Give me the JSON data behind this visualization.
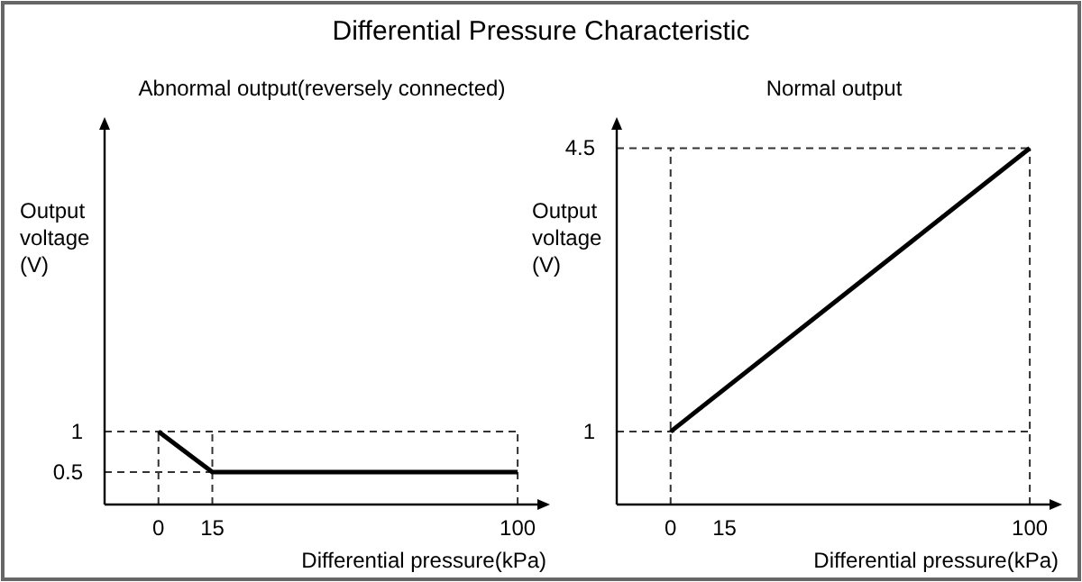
{
  "chart_data": [
    {
      "type": "line",
      "title": "Differential Pressure Characteristic",
      "subtitle": "Abnormal output(reversely connected)",
      "xlabel": "Differential pressure(kPa)",
      "ylabel": "Output voltage (V)",
      "x": [
        0,
        15,
        100
      ],
      "series": [
        {
          "color": "#000000",
          "values": [
            1,
            0.5,
            0.5
          ]
        }
      ],
      "xlim": [
        -15,
        106
      ],
      "xticks": [
        0,
        15,
        100
      ],
      "ylim": [
        0.1,
        4.75
      ],
      "yticks": [
        0.5,
        1
      ],
      "marker": "none",
      "line_style": "solid",
      "ref_lines": [
        {
          "axis": "y",
          "value": 1,
          "line_style": "dashed"
        },
        {
          "axis": "y",
          "value": 0.5,
          "line_style": "dashed"
        },
        {
          "axis": "x",
          "value": 0,
          "line_style": "dashed"
        },
        {
          "axis": "x",
          "value": 15,
          "line_style": "dashed"
        },
        {
          "axis": "x",
          "value": 100,
          "line_style": "dashed"
        }
      ]
    },
    {
      "type": "line",
      "subtitle": "Normal output",
      "xlabel": "Differential pressure(kPa)",
      "ylabel": "Output voltage (V)",
      "x": [
        0,
        100
      ],
      "series": [
        {
          "color": "#000000",
          "values": [
            1,
            4.5
          ]
        }
      ],
      "xlim": [
        -15,
        106
      ],
      "xticks": [
        0,
        15,
        100
      ],
      "ylim": [
        0.1,
        4.75
      ],
      "yticks": [
        1,
        4.5
      ],
      "marker": "none",
      "line_style": "solid",
      "ref_lines": [
        {
          "axis": "y",
          "value": 1,
          "line_style": "dashed"
        },
        {
          "axis": "y",
          "value": 4.5,
          "line_style": "dashed"
        },
        {
          "axis": "x",
          "value": 0,
          "line_style": "dashed"
        },
        {
          "axis": "x",
          "value": 100,
          "line_style": "dashed"
        }
      ]
    }
  ]
}
